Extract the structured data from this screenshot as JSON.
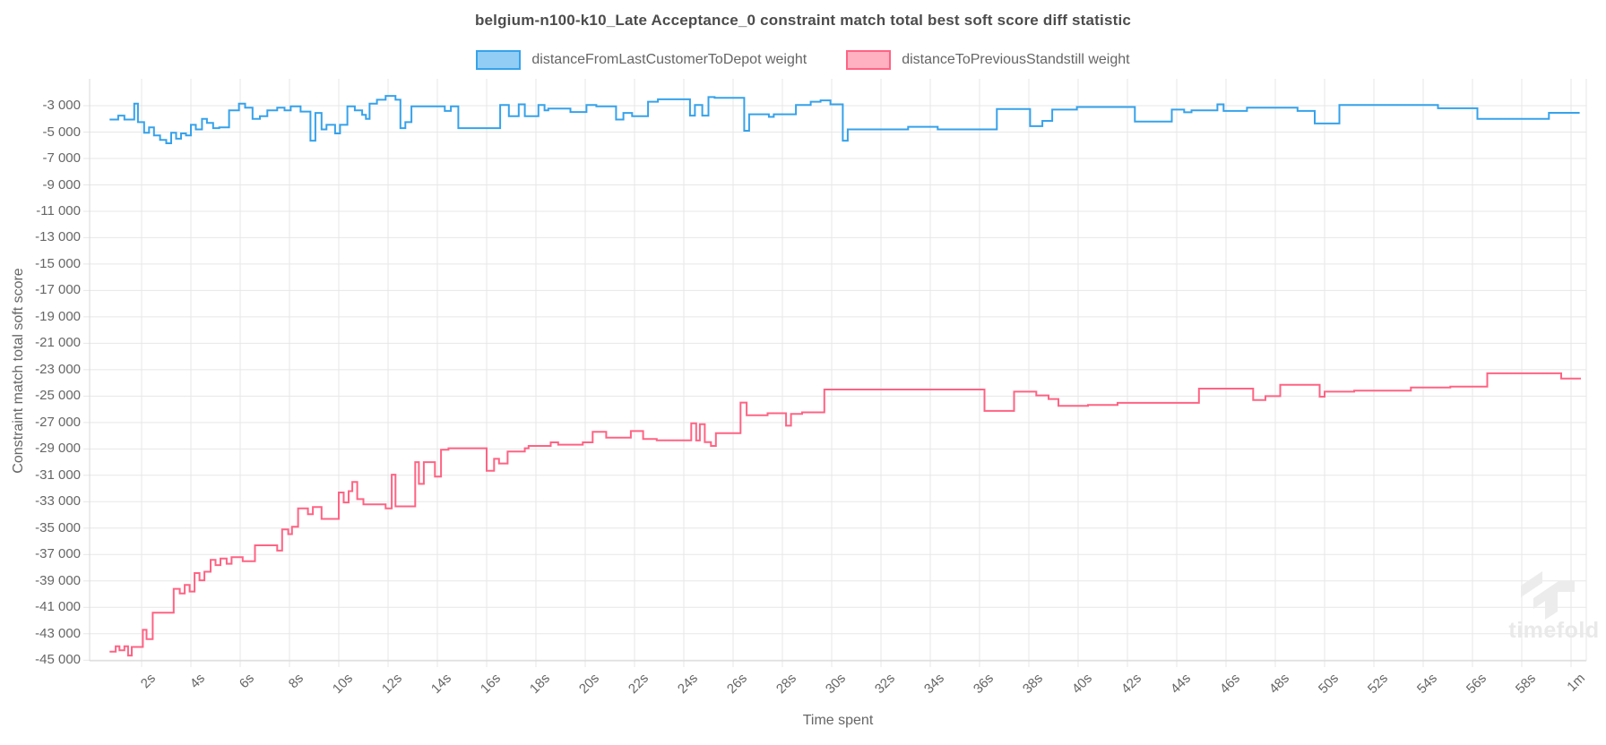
{
  "title": "belgium-n100-k10_Late Acceptance_0 constraint match total best soft score diff statistic",
  "legend": {
    "items": [
      {
        "label": "distanceFromLastCustomerToDepot weight",
        "fill": "#92CDF5",
        "border": "#36A2EB"
      },
      {
        "label": "distanceToPreviousStandstill weight",
        "fill": "#FFB1C1",
        "border": "#FF6384"
      }
    ]
  },
  "axes": {
    "x_title": "Time spent",
    "y_title": "Constraint match total soft score",
    "x_ticks": [
      {
        "t": 2,
        "label": "2s"
      },
      {
        "t": 4,
        "label": "4s"
      },
      {
        "t": 6,
        "label": "6s"
      },
      {
        "t": 8,
        "label": "8s"
      },
      {
        "t": 10,
        "label": "10s"
      },
      {
        "t": 12,
        "label": "12s"
      },
      {
        "t": 14,
        "label": "14s"
      },
      {
        "t": 16,
        "label": "16s"
      },
      {
        "t": 18,
        "label": "18s"
      },
      {
        "t": 20,
        "label": "20s"
      },
      {
        "t": 22,
        "label": "22s"
      },
      {
        "t": 24,
        "label": "24s"
      },
      {
        "t": 26,
        "label": "26s"
      },
      {
        "t": 28,
        "label": "28s"
      },
      {
        "t": 30,
        "label": "30s"
      },
      {
        "t": 32,
        "label": "32s"
      },
      {
        "t": 34,
        "label": "34s"
      },
      {
        "t": 36,
        "label": "36s"
      },
      {
        "t": 38,
        "label": "38s"
      },
      {
        "t": 40,
        "label": "40s"
      },
      {
        "t": 42,
        "label": "42s"
      },
      {
        "t": 44,
        "label": "44s"
      },
      {
        "t": 46,
        "label": "46s"
      },
      {
        "t": 48,
        "label": "48s"
      },
      {
        "t": 50,
        "label": "50s"
      },
      {
        "t": 52,
        "label": "52s"
      },
      {
        "t": 54,
        "label": "54s"
      },
      {
        "t": 56,
        "label": "56s"
      },
      {
        "t": 58,
        "label": "58s"
      },
      {
        "t": 60,
        "label": "1m"
      }
    ],
    "y_ticks": [
      {
        "v": -3000,
        "label": "-3 000"
      },
      {
        "v": -5000,
        "label": "-5 000"
      },
      {
        "v": -7000,
        "label": "-7 000"
      },
      {
        "v": -9000,
        "label": "-9 000"
      },
      {
        "v": -11000,
        "label": "-11 000"
      },
      {
        "v": -13000,
        "label": "-13 000"
      },
      {
        "v": -15000,
        "label": "-15 000"
      },
      {
        "v": -17000,
        "label": "-17 000"
      },
      {
        "v": -19000,
        "label": "-19 000"
      },
      {
        "v": -21000,
        "label": "-21 000"
      },
      {
        "v": -23000,
        "label": "-23 000"
      },
      {
        "v": -25000,
        "label": "-25 000"
      },
      {
        "v": -27000,
        "label": "-27 000"
      },
      {
        "v": -29000,
        "label": "-29 000"
      },
      {
        "v": -31000,
        "label": "-31 000"
      },
      {
        "v": -33000,
        "label": "-33 000"
      },
      {
        "v": -35000,
        "label": "-35 000"
      },
      {
        "v": -37000,
        "label": "-37 000"
      },
      {
        "v": -39000,
        "label": "-39 000"
      },
      {
        "v": -41000,
        "label": "-41 000"
      },
      {
        "v": -43000,
        "label": "-43 000"
      },
      {
        "v": -45000,
        "label": "-45 000"
      }
    ]
  },
  "watermark": {
    "text": "timefold"
  },
  "colors": {
    "blue_line": "#36A2EB",
    "blue_fill": "#92CDF5",
    "pink_line": "#FF6384",
    "pink_fill": "#FFB1C1",
    "grid": "#e7e7e7",
    "axis_border": "#d9d9d9",
    "text": "#666666",
    "watermark": "#ececec"
  },
  "chart_data": {
    "type": "line",
    "step": "after",
    "title": "belgium-n100-k10_Late Acceptance_0 constraint match total best soft score diff statistic",
    "xlabel": "Time spent",
    "ylabel": "Constraint match total soft score",
    "x_unit": "seconds",
    "x_range": [
      0,
      60.6
    ],
    "y_range": [
      -45100,
      -980
    ],
    "grid": true,
    "legend_position": "top",
    "series": [
      {
        "name": "distanceFromLastCustomerToDepot weight",
        "color": "#36A2EB",
        "points": [
          [
            0.7,
            -4050
          ],
          [
            1.05,
            -3750
          ],
          [
            1.3,
            -4050
          ],
          [
            1.7,
            -2850
          ],
          [
            1.85,
            -4250
          ],
          [
            2.1,
            -5050
          ],
          [
            2.3,
            -4650
          ],
          [
            2.5,
            -5250
          ],
          [
            2.75,
            -5600
          ],
          [
            3.0,
            -5850
          ],
          [
            3.2,
            -5050
          ],
          [
            3.4,
            -5500
          ],
          [
            3.6,
            -5100
          ],
          [
            3.8,
            -5250
          ],
          [
            4.0,
            -4450
          ],
          [
            4.2,
            -4800
          ],
          [
            4.45,
            -4000
          ],
          [
            4.65,
            -4300
          ],
          [
            4.9,
            -4700
          ],
          [
            5.15,
            -4650
          ],
          [
            5.55,
            -3350
          ],
          [
            5.95,
            -2850
          ],
          [
            6.2,
            -3150
          ],
          [
            6.5,
            -4000
          ],
          [
            6.8,
            -3800
          ],
          [
            7.1,
            -3350
          ],
          [
            7.5,
            -3150
          ],
          [
            7.8,
            -3350
          ],
          [
            8.05,
            -3050
          ],
          [
            8.45,
            -3450
          ],
          [
            8.85,
            -5650
          ],
          [
            9.05,
            -3550
          ],
          [
            9.3,
            -4800
          ],
          [
            9.5,
            -4450
          ],
          [
            9.85,
            -5100
          ],
          [
            10.05,
            -4450
          ],
          [
            10.35,
            -3050
          ],
          [
            10.65,
            -3350
          ],
          [
            10.95,
            -3700
          ],
          [
            11.1,
            -4000
          ],
          [
            11.25,
            -2850
          ],
          [
            11.55,
            -2550
          ],
          [
            11.9,
            -2260
          ],
          [
            12.3,
            -2550
          ],
          [
            12.5,
            -4700
          ],
          [
            12.7,
            -4250
          ],
          [
            12.95,
            -3050
          ],
          [
            14.3,
            -3400
          ],
          [
            14.55,
            -3050
          ],
          [
            14.85,
            -4700
          ],
          [
            16.55,
            -2950
          ],
          [
            16.9,
            -3800
          ],
          [
            17.3,
            -2900
          ],
          [
            17.55,
            -3800
          ],
          [
            18.1,
            -2950
          ],
          [
            18.35,
            -3350
          ],
          [
            18.5,
            -3220
          ],
          [
            19.4,
            -3480
          ],
          [
            20.05,
            -2950
          ],
          [
            20.45,
            -3050
          ],
          [
            21.25,
            -4050
          ],
          [
            21.55,
            -3550
          ],
          [
            21.9,
            -3800
          ],
          [
            22.55,
            -2700
          ],
          [
            22.95,
            -2520
          ],
          [
            24.25,
            -3750
          ],
          [
            24.45,
            -2950
          ],
          [
            24.75,
            -3750
          ],
          [
            25.0,
            -2350
          ],
          [
            25.25,
            -2400
          ],
          [
            26.45,
            -4900
          ],
          [
            26.65,
            -3650
          ],
          [
            27.45,
            -3850
          ],
          [
            27.65,
            -3650
          ],
          [
            28.55,
            -2950
          ],
          [
            29.15,
            -2700
          ],
          [
            29.55,
            -2600
          ],
          [
            29.95,
            -2900
          ],
          [
            30.45,
            -5650
          ],
          [
            30.65,
            -4800
          ],
          [
            33.1,
            -4600
          ],
          [
            34.3,
            -4800
          ],
          [
            36.7,
            -3250
          ],
          [
            38.05,
            -4550
          ],
          [
            38.55,
            -4150
          ],
          [
            38.95,
            -3300
          ],
          [
            39.95,
            -3100
          ],
          [
            42.3,
            -4200
          ],
          [
            43.8,
            -3300
          ],
          [
            44.3,
            -3500
          ],
          [
            44.6,
            -3350
          ],
          [
            45.65,
            -2900
          ],
          [
            45.9,
            -3400
          ],
          [
            46.85,
            -3150
          ],
          [
            48.9,
            -3400
          ],
          [
            49.6,
            -4350
          ],
          [
            50.6,
            -2950
          ],
          [
            54.6,
            -3200
          ],
          [
            56.2,
            -4000
          ],
          [
            59.1,
            -3540
          ],
          [
            60.35,
            -3540
          ]
        ]
      },
      {
        "name": "distanceToPreviousStandstill weight",
        "color": "#FF6384",
        "points": [
          [
            0.7,
            -44350
          ],
          [
            0.95,
            -43950
          ],
          [
            1.1,
            -44250
          ],
          [
            1.3,
            -43950
          ],
          [
            1.45,
            -44650
          ],
          [
            1.6,
            -44000
          ],
          [
            2.05,
            -42700
          ],
          [
            2.2,
            -43400
          ],
          [
            2.45,
            -41400
          ],
          [
            3.3,
            -39600
          ],
          [
            3.55,
            -39950
          ],
          [
            3.75,
            -39300
          ],
          [
            3.95,
            -39800
          ],
          [
            4.15,
            -38400
          ],
          [
            4.35,
            -38950
          ],
          [
            4.55,
            -38300
          ],
          [
            4.8,
            -37400
          ],
          [
            5.0,
            -37800
          ],
          [
            5.2,
            -37300
          ],
          [
            5.45,
            -37700
          ],
          [
            5.65,
            -37200
          ],
          [
            6.1,
            -37500
          ],
          [
            6.6,
            -36300
          ],
          [
            7.5,
            -36700
          ],
          [
            7.7,
            -35100
          ],
          [
            7.95,
            -35450
          ],
          [
            8.1,
            -34900
          ],
          [
            8.35,
            -33500
          ],
          [
            8.75,
            -33950
          ],
          [
            8.95,
            -33400
          ],
          [
            9.3,
            -34300
          ],
          [
            10.0,
            -32300
          ],
          [
            10.2,
            -33050
          ],
          [
            10.4,
            -32200
          ],
          [
            10.55,
            -31500
          ],
          [
            10.75,
            -32800
          ],
          [
            11.0,
            -33200
          ],
          [
            11.9,
            -33500
          ],
          [
            12.15,
            -30950
          ],
          [
            12.3,
            -33350
          ],
          [
            13.1,
            -30000
          ],
          [
            13.25,
            -31650
          ],
          [
            13.45,
            -30000
          ],
          [
            13.9,
            -31100
          ],
          [
            14.15,
            -29060
          ],
          [
            14.45,
            -28950
          ],
          [
            16.0,
            -30650
          ],
          [
            16.3,
            -29750
          ],
          [
            16.5,
            -30100
          ],
          [
            16.85,
            -29200
          ],
          [
            17.55,
            -28950
          ],
          [
            17.7,
            -28770
          ],
          [
            18.6,
            -28500
          ],
          [
            18.9,
            -28680
          ],
          [
            19.9,
            -28500
          ],
          [
            20.3,
            -27700
          ],
          [
            20.85,
            -28150
          ],
          [
            21.85,
            -27650
          ],
          [
            22.35,
            -28250
          ],
          [
            22.9,
            -28350
          ],
          [
            24.3,
            -27060
          ],
          [
            24.5,
            -28360
          ],
          [
            24.65,
            -27130
          ],
          [
            24.85,
            -28480
          ],
          [
            25.1,
            -28770
          ],
          [
            25.3,
            -27800
          ],
          [
            26.3,
            -25490
          ],
          [
            26.55,
            -26455
          ],
          [
            27.4,
            -26300
          ],
          [
            28.15,
            -27240
          ],
          [
            28.35,
            -26345
          ],
          [
            28.8,
            -26230
          ],
          [
            29.7,
            -24500
          ],
          [
            36.2,
            -26120
          ],
          [
            37.4,
            -24660
          ],
          [
            38.3,
            -24950
          ],
          [
            38.8,
            -25220
          ],
          [
            39.2,
            -25740
          ],
          [
            40.4,
            -25670
          ],
          [
            41.6,
            -25510
          ],
          [
            44.9,
            -24430
          ],
          [
            47.1,
            -25290
          ],
          [
            47.6,
            -25000
          ],
          [
            48.2,
            -24140
          ],
          [
            49.8,
            -25040
          ],
          [
            50.0,
            -24660
          ],
          [
            51.2,
            -24590
          ],
          [
            53.5,
            -24350
          ],
          [
            55.1,
            -24280
          ],
          [
            56.6,
            -23270
          ],
          [
            59.6,
            -23675
          ],
          [
            60.4,
            -23675
          ]
        ]
      }
    ]
  }
}
